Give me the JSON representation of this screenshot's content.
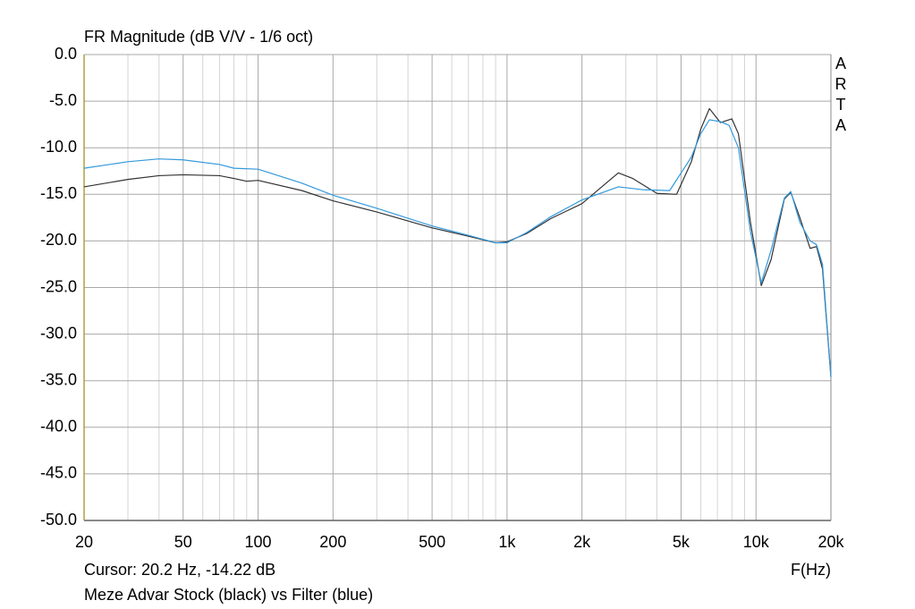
{
  "chart_data": {
    "type": "line",
    "title": "FR Magnitude (dB V/V - 1/6 oct)",
    "watermark": "ARTA",
    "x_label": "F(Hz)",
    "cursor": "Cursor: 20.2 Hz, -14.22 dB",
    "caption": "Meze Advar Stock (black) vs Filter (blue)",
    "xscale": "log",
    "grid": true,
    "xlim": [
      20,
      20000
    ],
    "xticks": [
      20,
      50,
      100,
      200,
      500,
      {
        "value": 1000,
        "label": "1k"
      },
      {
        "value": 2000,
        "label": "2k"
      },
      {
        "value": 5000,
        "label": "5k"
      },
      {
        "value": 10000,
        "label": "10k"
      },
      {
        "value": 20000,
        "label": "20k"
      }
    ],
    "xminorticks": [
      30,
      40,
      60,
      70,
      80,
      90,
      300,
      400,
      600,
      700,
      800,
      900,
      3000,
      4000,
      6000,
      7000,
      8000,
      9000
    ],
    "ylim": [
      -50,
      0
    ],
    "yticks": [
      {
        "value": 0,
        "label": "0.0"
      },
      {
        "value": -5,
        "label": "-5.0"
      },
      {
        "value": -10,
        "label": "-10.0"
      },
      {
        "value": -15,
        "label": "-15.0"
      },
      {
        "value": -20,
        "label": "-20.0"
      },
      {
        "value": -25,
        "label": "-25.0"
      },
      {
        "value": -30,
        "label": "-30.0"
      },
      {
        "value": -35,
        "label": "-35.0"
      },
      {
        "value": -40,
        "label": "-40.0"
      },
      {
        "value": -45,
        "label": "-45.0"
      },
      {
        "value": -50,
        "label": "-50.0"
      }
    ],
    "series": [
      {
        "color": "#333333",
        "x": [
          20,
          30,
          40,
          50,
          70,
          80,
          90,
          100,
          150,
          200,
          300,
          500,
          700,
          900,
          1000,
          1200,
          1500,
          2000,
          2500,
          2800,
          3200,
          4000,
          4800,
          5500,
          6000,
          6500,
          7200,
          8000,
          8500,
          9500,
          10500,
          11500,
          13000,
          13800,
          15000,
          16500,
          17500,
          18500,
          20000
        ],
        "values": [
          -14.2,
          -13.4,
          -13.0,
          -12.9,
          -13.0,
          -13.3,
          -13.6,
          -13.5,
          -14.6,
          -15.7,
          -16.9,
          -18.6,
          -19.5,
          -20.2,
          -20.1,
          -19.2,
          -17.6,
          -16.0,
          -13.8,
          -12.7,
          -13.3,
          -14.9,
          -15.0,
          -11.5,
          -8.0,
          -5.8,
          -7.3,
          -6.9,
          -8.5,
          -18.0,
          -24.8,
          -22.0,
          -15.5,
          -14.8,
          -17.5,
          -20.8,
          -20.6,
          -23.0,
          -34.6
        ]
      },
      {
        "color": "#3399dd",
        "x": [
          20,
          30,
          40,
          50,
          70,
          80,
          100,
          150,
          200,
          300,
          500,
          700,
          900,
          1000,
          1200,
          1500,
          2000,
          2800,
          3500,
          4500,
          5500,
          6000,
          6500,
          7200,
          7800,
          8500,
          9500,
          10500,
          11500,
          13000,
          13800,
          15000,
          16500,
          17500,
          18500,
          20000
        ],
        "values": [
          -12.2,
          -11.5,
          -11.2,
          -11.3,
          -11.8,
          -12.2,
          -12.3,
          -13.8,
          -15.1,
          -16.5,
          -18.4,
          -19.4,
          -20.2,
          -20.2,
          -19.1,
          -17.4,
          -15.6,
          -14.2,
          -14.5,
          -14.6,
          -11.0,
          -8.5,
          -7.0,
          -7.2,
          -7.6,
          -10.0,
          -19.0,
          -24.5,
          -21.0,
          -15.4,
          -14.7,
          -18.0,
          -20.0,
          -20.4,
          -22.5,
          -34.6
        ]
      }
    ]
  }
}
